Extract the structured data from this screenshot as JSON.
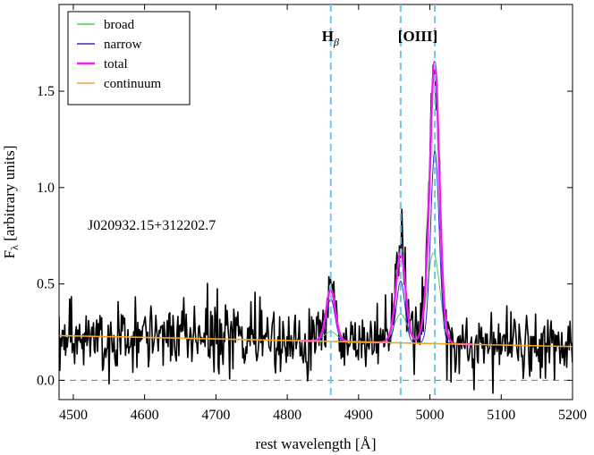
{
  "chart_data": {
    "type": "line",
    "title": "",
    "xlabel": "rest wavelength [Å]",
    "ylabel_main": "F",
    "ylabel_sub": "λ",
    "ylabel_rest": " [arbitrary units]",
    "xlim": [
      4480,
      5200
    ],
    "ylim": [
      -0.1,
      1.95
    ],
    "xticks": [
      4500,
      4600,
      4700,
      4800,
      4900,
      5000,
      5100,
      5200
    ],
    "yticks": [
      0.0,
      0.5,
      1.0,
      1.5
    ],
    "ytick_labels": [
      "0.0",
      "0.5",
      "1.0",
      "1.5"
    ],
    "zero_line": 0.0,
    "object_name": "J020932.15+312202.7",
    "lines": [
      {
        "label_main": "H",
        "label_sub": "β",
        "wavelength": 4861
      },
      {
        "label_main": "[OIII]",
        "label_sub": "",
        "wavelength": 4959
      },
      {
        "label_main": "",
        "label_sub": "",
        "wavelength": 5007
      }
    ],
    "legend": {
      "placement": "top-left",
      "entries": [
        {
          "name": "broad",
          "color": "#4fd24f"
        },
        {
          "name": "narrow",
          "color": "#2b2bd6"
        },
        {
          "name": "total",
          "color": "#ee1cee"
        },
        {
          "name": "continuum",
          "color": "#f5a623"
        }
      ]
    },
    "series": [
      {
        "name": "continuum",
        "color": "#f5a623",
        "model": "linear",
        "x": [
          4480,
          5200
        ],
        "y": [
          0.232,
          0.175
        ]
      },
      {
        "name": "broad",
        "color": "#4fd24f",
        "model": "gaussians",
        "components": [
          {
            "center": 4861,
            "sigma": 9,
            "amp": 0.05
          },
          {
            "center": 4959,
            "sigma": 9,
            "amp": 0.15
          },
          {
            "center": 5005,
            "sigma": 9,
            "amp": 0.47
          }
        ]
      },
      {
        "name": "narrow",
        "color": "#2b2bd6",
        "model": "gaussians",
        "components": [
          {
            "center": 4861,
            "sigma": 6,
            "amp": 0.22
          },
          {
            "center": 4959,
            "sigma": 6,
            "amp": 0.32
          },
          {
            "center": 5007,
            "sigma": 6,
            "amp": 1.0
          }
        ]
      },
      {
        "name": "total",
        "color": "#ee1cee",
        "model": "sum"
      },
      {
        "name": "observed",
        "color": "#000000",
        "model": "noisy",
        "noise_std": 0.09,
        "seed": 20932
      }
    ]
  }
}
